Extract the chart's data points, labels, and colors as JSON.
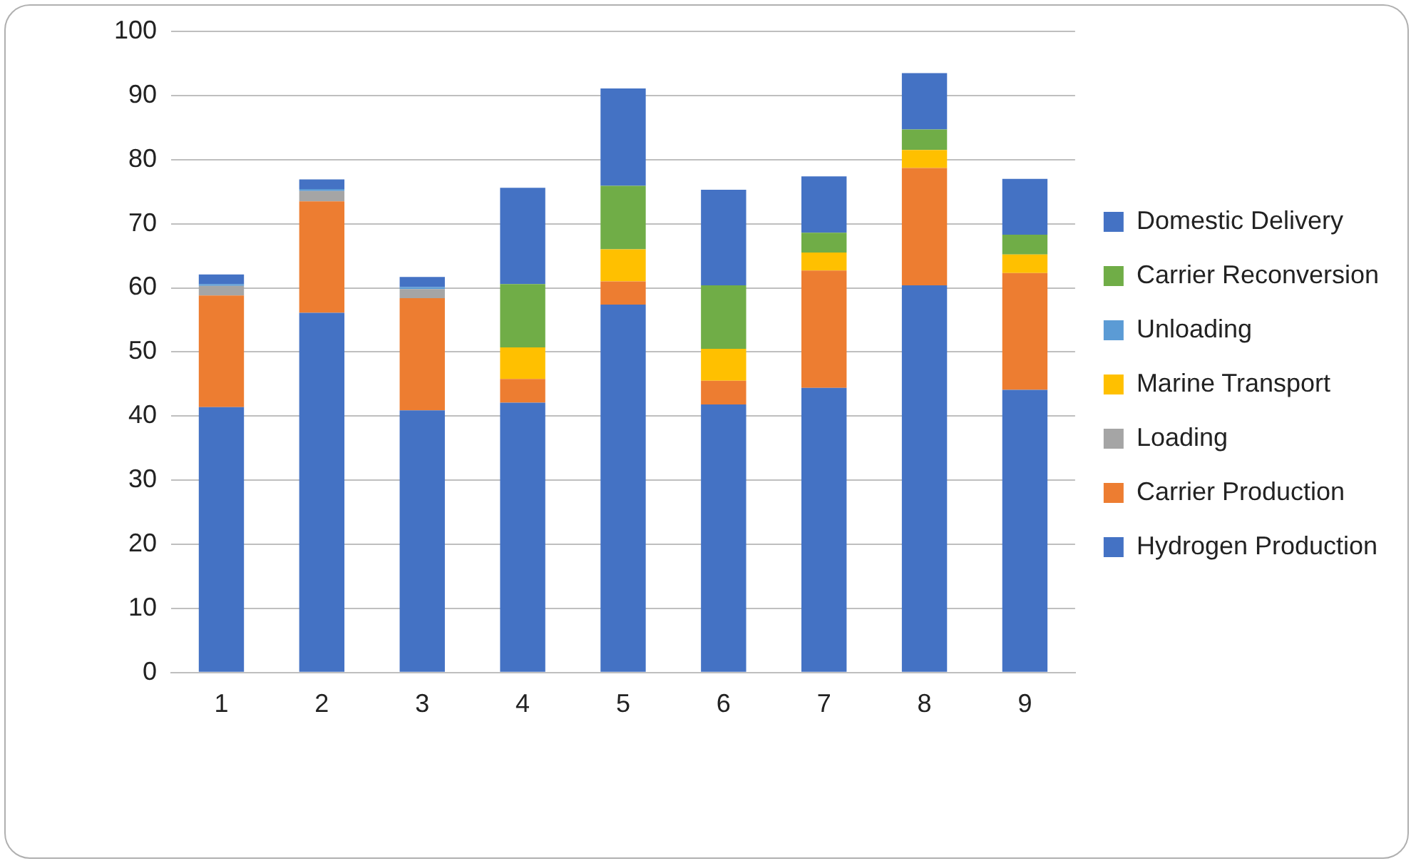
{
  "chart_data": {
    "type": "bar",
    "stacked": true,
    "categories": [
      "1",
      "2",
      "3",
      "4",
      "5",
      "6",
      "7",
      "8",
      "9"
    ],
    "series": [
      {
        "name": "Hydrogen Production",
        "color": "#4472c4",
        "values": [
          41.4,
          56.1,
          40.9,
          42.1,
          57.4,
          41.8,
          44.4,
          60.4,
          44.1
        ]
      },
      {
        "name": "Carrier Production",
        "color": "#ed7d31",
        "values": [
          17.4,
          17.4,
          17.5,
          3.7,
          3.6,
          3.7,
          18.3,
          18.3,
          18.2
        ]
      },
      {
        "name": "Loading",
        "color": "#a5a5a5",
        "values": [
          1.5,
          1.6,
          1.4,
          0,
          0,
          0,
          0,
          0,
          0
        ]
      },
      {
        "name": "Marine Transport",
        "color": "#ffc000",
        "values": [
          0,
          0,
          0,
          4.9,
          5.0,
          5.0,
          2.8,
          2.8,
          2.9
        ]
      },
      {
        "name": "Unloading",
        "color": "#5b9bd5",
        "values": [
          0.3,
          0.3,
          0.3,
          0,
          0,
          0,
          0,
          0,
          0
        ]
      },
      {
        "name": "Carrier Reconversion",
        "color": "#70ad47",
        "values": [
          0,
          0,
          0,
          9.9,
          9.9,
          9.9,
          3.1,
          3.2,
          3.1
        ]
      },
      {
        "name": "Domestic Delivery",
        "color": "#4472c4",
        "values": [
          1.5,
          1.5,
          1.6,
          15.0,
          15.2,
          14.9,
          8.8,
          8.8,
          8.7
        ]
      }
    ],
    "ylim": [
      0,
      100
    ],
    "yticks": [
      0,
      10,
      20,
      30,
      40,
      50,
      60,
      70,
      80,
      90,
      100
    ],
    "grid": "y",
    "legend": "right"
  }
}
